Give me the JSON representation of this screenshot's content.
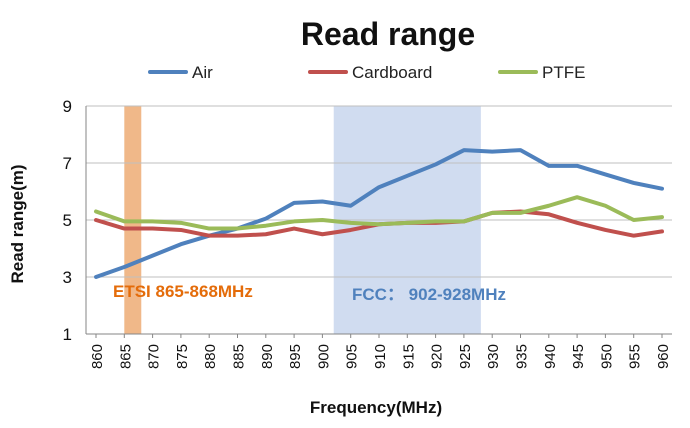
{
  "chart_data": {
    "type": "line",
    "title": "Read range",
    "xlabel": "Frequency(MHz)",
    "ylabel": "Read range(m)",
    "categories": [
      "860",
      "865",
      "870",
      "875",
      "880",
      "885",
      "890",
      "895",
      "900",
      "905",
      "910",
      "915",
      "920",
      "925",
      "930",
      "935",
      "940",
      "945",
      "950",
      "955",
      "960"
    ],
    "yticks": [
      1,
      3,
      5,
      7,
      9
    ],
    "ylim": [
      1,
      9
    ],
    "grid": "horizontal",
    "legend_position": "top",
    "series": [
      {
        "name": "Air",
        "color": "#4f81bd",
        "values": [
          3.0,
          3.35,
          3.75,
          4.15,
          4.45,
          4.7,
          5.05,
          5.6,
          5.65,
          5.5,
          6.15,
          6.55,
          6.95,
          7.45,
          7.4,
          7.45,
          6.9,
          6.9,
          6.6,
          6.3,
          6.1
        ]
      },
      {
        "name": "Cardboard",
        "color": "#c0504d",
        "values": [
          5.0,
          4.7,
          4.7,
          4.65,
          4.45,
          4.45,
          4.5,
          4.7,
          4.5,
          4.65,
          4.85,
          4.9,
          4.9,
          4.95,
          5.25,
          5.3,
          5.2,
          4.9,
          4.65,
          4.45,
          4.6
        ]
      },
      {
        "name": "PTFE",
        "color": "#9bbb59",
        "values": [
          5.3,
          4.95,
          4.95,
          4.9,
          4.7,
          4.7,
          4.8,
          4.95,
          5.0,
          4.9,
          4.85,
          4.9,
          4.95,
          4.95,
          5.25,
          5.25,
          5.5,
          5.8,
          5.5,
          5.0,
          5.1
        ]
      }
    ],
    "bands": [
      {
        "label": "ETSI 865-868MHz",
        "from": 865,
        "to": 868,
        "color": "#f0b889",
        "text_color": "#e46c0a"
      },
      {
        "label": "FCC： 902-928MHz",
        "from": 902,
        "to": 928,
        "color": "#d0dcf0",
        "text_color": "#4f81bd"
      }
    ]
  }
}
